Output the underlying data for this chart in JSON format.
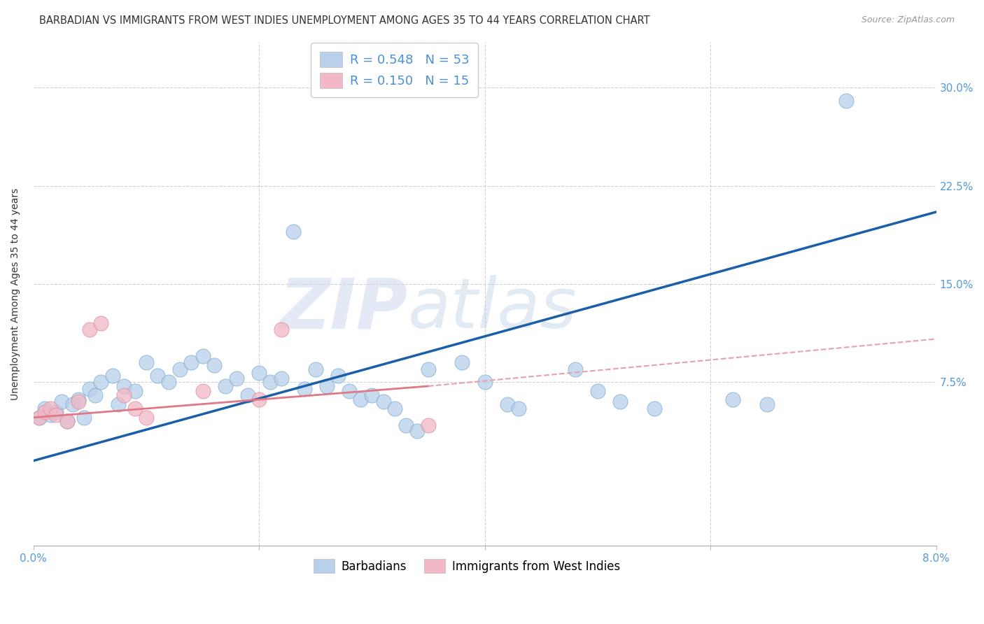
{
  "title": "BARBADIAN VS IMMIGRANTS FROM WEST INDIES UNEMPLOYMENT AMONG AGES 35 TO 44 YEARS CORRELATION CHART",
  "source": "Source: ZipAtlas.com",
  "ylabel": "Unemployment Among Ages 35 to 44 years",
  "xlim": [
    0.0,
    0.08
  ],
  "ylim": [
    -0.05,
    0.335
  ],
  "yticks": [
    0.075,
    0.15,
    0.225,
    0.3
  ],
  "ytick_labels": [
    "7.5%",
    "15.0%",
    "22.5%",
    "30.0%"
  ],
  "xticks": [
    0.0,
    0.02,
    0.04,
    0.06,
    0.08
  ],
  "xtick_labels": [
    "0.0%",
    "",
    "",
    "",
    "8.0%"
  ],
  "blue_color": "#b8d0ea",
  "blue_edge": "#7aaad0",
  "pink_color": "#f2b8c6",
  "pink_edge": "#e08898",
  "blue_line_color": "#1a5fa8",
  "pink_solid_color": "#e07888",
  "pink_dash_color": "#e8a0b0",
  "grid_color": "#d0d0d0",
  "bg_color": "#ffffff",
  "legend_color": "#4a90d9",
  "title_color": "#333333",
  "tick_color": "#5599dd",
  "blue_dots": [
    [
      0.0005,
      0.048
    ],
    [
      0.001,
      0.055
    ],
    [
      0.0015,
      0.05
    ],
    [
      0.002,
      0.052
    ],
    [
      0.0025,
      0.06
    ],
    [
      0.003,
      0.045
    ],
    [
      0.0035,
      0.058
    ],
    [
      0.004,
      0.062
    ],
    [
      0.0045,
      0.048
    ],
    [
      0.005,
      0.07
    ],
    [
      0.0055,
      0.065
    ],
    [
      0.006,
      0.075
    ],
    [
      0.007,
      0.08
    ],
    [
      0.0075,
      0.058
    ],
    [
      0.008,
      0.072
    ],
    [
      0.009,
      0.068
    ],
    [
      0.01,
      0.09
    ],
    [
      0.011,
      0.08
    ],
    [
      0.012,
      0.075
    ],
    [
      0.013,
      0.085
    ],
    [
      0.014,
      0.09
    ],
    [
      0.015,
      0.095
    ],
    [
      0.016,
      0.088
    ],
    [
      0.017,
      0.072
    ],
    [
      0.018,
      0.078
    ],
    [
      0.019,
      0.065
    ],
    [
      0.02,
      0.082
    ],
    [
      0.021,
      0.075
    ],
    [
      0.022,
      0.078
    ],
    [
      0.023,
      0.19
    ],
    [
      0.024,
      0.07
    ],
    [
      0.025,
      0.085
    ],
    [
      0.026,
      0.072
    ],
    [
      0.027,
      0.08
    ],
    [
      0.028,
      0.068
    ],
    [
      0.029,
      0.062
    ],
    [
      0.03,
      0.065
    ],
    [
      0.031,
      0.06
    ],
    [
      0.032,
      0.055
    ],
    [
      0.033,
      0.042
    ],
    [
      0.034,
      0.038
    ],
    [
      0.035,
      0.085
    ],
    [
      0.038,
      0.09
    ],
    [
      0.04,
      0.075
    ],
    [
      0.042,
      0.058
    ],
    [
      0.043,
      0.055
    ],
    [
      0.048,
      0.085
    ],
    [
      0.05,
      0.068
    ],
    [
      0.052,
      0.06
    ],
    [
      0.055,
      0.055
    ],
    [
      0.062,
      0.062
    ],
    [
      0.065,
      0.058
    ],
    [
      0.072,
      0.29
    ]
  ],
  "pink_dots": [
    [
      0.0005,
      0.048
    ],
    [
      0.001,
      0.052
    ],
    [
      0.0015,
      0.055
    ],
    [
      0.002,
      0.05
    ],
    [
      0.003,
      0.045
    ],
    [
      0.004,
      0.06
    ],
    [
      0.005,
      0.115
    ],
    [
      0.006,
      0.12
    ],
    [
      0.008,
      0.065
    ],
    [
      0.009,
      0.055
    ],
    [
      0.01,
      0.048
    ],
    [
      0.015,
      0.068
    ],
    [
      0.02,
      0.062
    ],
    [
      0.022,
      0.115
    ],
    [
      0.035,
      0.042
    ]
  ],
  "blue_line": {
    "x0": 0.0,
    "y0": 0.015,
    "x1": 0.08,
    "y1": 0.205
  },
  "pink_solid_line": {
    "x0": 0.0,
    "y0": 0.048,
    "x1": 0.035,
    "y1": 0.072
  },
  "pink_dash_line": {
    "x0": 0.035,
    "y0": 0.072,
    "x1": 0.08,
    "y1": 0.108
  }
}
